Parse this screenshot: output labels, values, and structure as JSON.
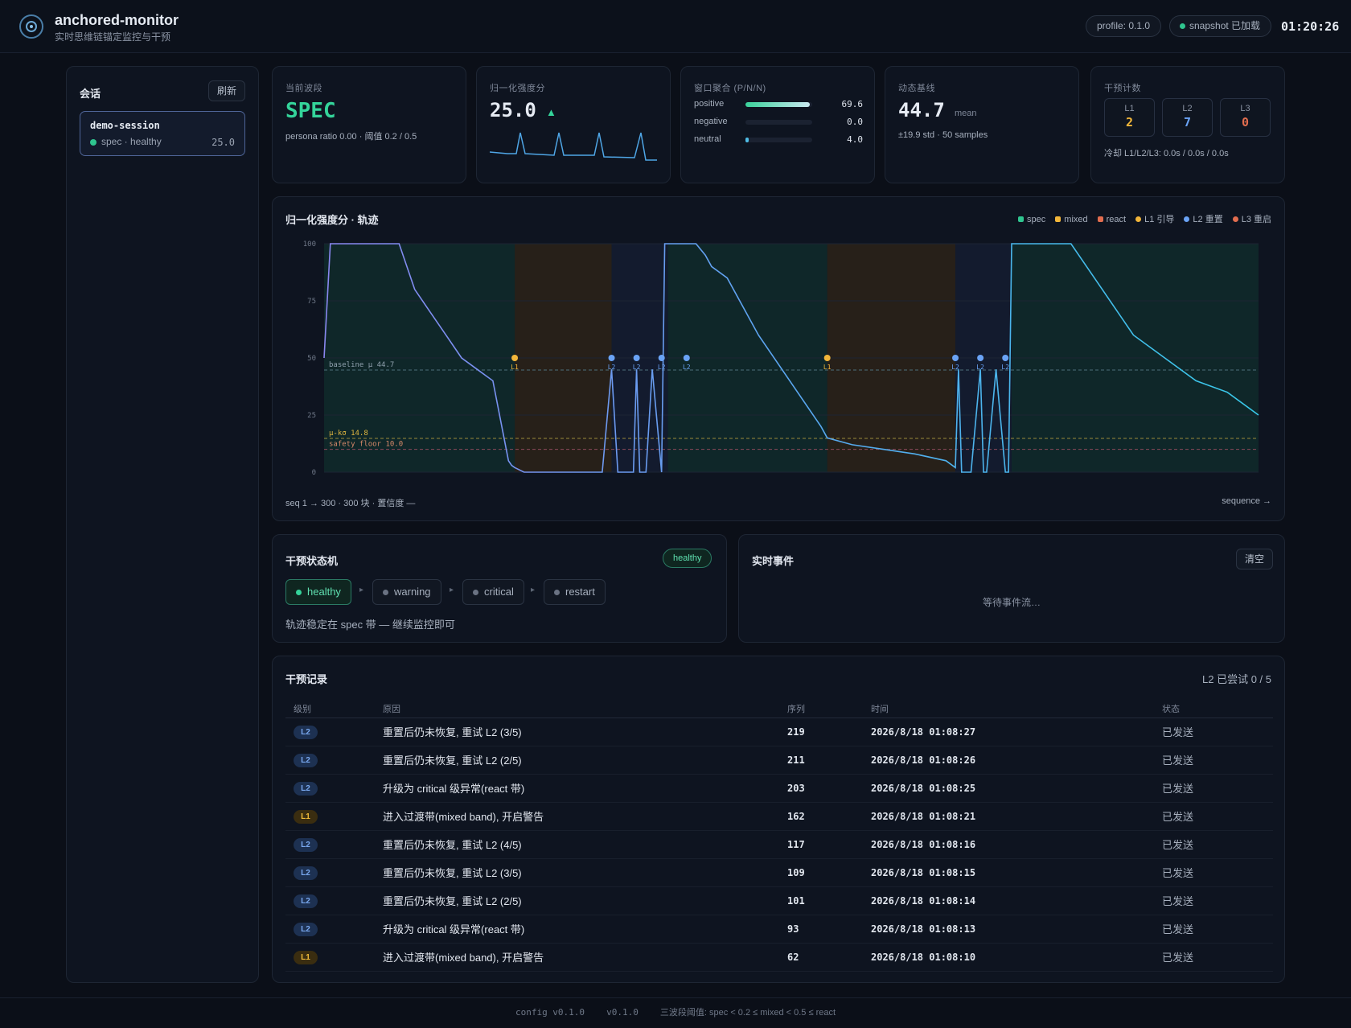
{
  "header": {
    "title": "anchored-monitor",
    "subtitle": "实时思维链锚定监控与干预",
    "profile": "profile: 0.1.0",
    "snapshot": "snapshot 已加载",
    "clock": "01:20:26"
  },
  "sidebar": {
    "title": "会话",
    "refresh": "刷新",
    "session": {
      "name": "demo-session",
      "status": "spec · healthy",
      "score": "25.0"
    }
  },
  "cards": {
    "phase": {
      "label": "当前波段",
      "value": "SPEC",
      "sub": "persona ratio 0.00 · 阈值 0.2 / 0.5"
    },
    "score": {
      "label": "归一化强度分",
      "value": "25.0",
      "trend": "▲"
    },
    "window": {
      "label": "窗口聚合 (P/N/N)",
      "rows": [
        {
          "name": "positive",
          "value": "69.6",
          "fraction": 0.96
        },
        {
          "name": "negative",
          "value": "0.0",
          "fraction": 0.0
        },
        {
          "name": "neutral",
          "value": "4.0",
          "fraction": 0.05
        }
      ]
    },
    "baseline": {
      "label": "动态基线",
      "value": "44.7",
      "unit": "mean",
      "sub": "±19.9 std · 50 samples"
    },
    "counts": {
      "label": "干预计数",
      "items": [
        {
          "k": "L1",
          "v": "2",
          "color": "#f2b63a"
        },
        {
          "k": "L2",
          "v": "7",
          "color": "#6aa3f5"
        },
        {
          "k": "L3",
          "v": "0",
          "color": "#e26d4f"
        }
      ],
      "cooldown": "冷却 L1/L2/L3: 0.0s / 0.0s / 0.0s"
    }
  },
  "trajectory": {
    "title": "归一化强度分 · 轨迹",
    "legend": [
      {
        "name": "spec",
        "color": "#2fc58f"
      },
      {
        "name": "mixed",
        "color": "#f2b63a"
      },
      {
        "name": "react",
        "color": "#e26d4f"
      },
      {
        "name": "L1 引导",
        "color": "#f2b63a",
        "round": true
      },
      {
        "name": "L2 重置",
        "color": "#6aa3f5",
        "round": true
      },
      {
        "name": "L3 重启",
        "color": "#e26d4f",
        "round": true
      }
    ],
    "footer_left": "seq 1 → 300 · 300 块 · 置信度 —",
    "footer_right": "sequence →",
    "baseline_label": "baseline μ 44.7",
    "kappa_label": "μ-kσ 14.8",
    "floor_label": "safety floor 10.0"
  },
  "chart_data": {
    "type": "line",
    "x": [
      1,
      3,
      5,
      10,
      15,
      20,
      25,
      30,
      35,
      40,
      45,
      50,
      55,
      60,
      61,
      62,
      65,
      70,
      75,
      80,
      83,
      85,
      90,
      93,
      95,
      100,
      101,
      102,
      104,
      106,
      109,
      110,
      111,
      113,
      115,
      117,
      118,
      120,
      123,
      125,
      130,
      140,
      150,
      160,
      162,
      170,
      180,
      190,
      200,
      203,
      204,
      205,
      208,
      211,
      212,
      213,
      216,
      219,
      220,
      221,
      225,
      230,
      240,
      250,
      260,
      270,
      280,
      290,
      300
    ],
    "y": [
      50,
      100,
      100,
      100,
      100,
      100,
      100,
      80,
      70,
      60,
      50,
      45,
      40,
      5,
      3,
      2,
      0,
      0,
      0,
      0,
      0,
      0,
      0,
      45,
      0,
      0,
      45,
      0,
      0,
      45,
      0,
      100,
      100,
      100,
      100,
      100,
      100,
      100,
      95,
      90,
      85,
      60,
      40,
      20,
      15,
      12,
      10,
      8,
      5,
      2,
      45,
      0,
      0,
      45,
      0,
      0,
      45,
      0,
      0,
      100,
      100,
      100,
      100,
      80,
      60,
      50,
      40,
      35,
      25
    ],
    "xlim": [
      1,
      300
    ],
    "ylim": [
      0,
      100
    ],
    "yticks": [
      0,
      25,
      50,
      75,
      100
    ],
    "baseline": 44.7,
    "mu_minus_k_sigma": 14.8,
    "safety_floor": 10.0,
    "bands": [
      {
        "from": 1,
        "to": 62,
        "band": "spec"
      },
      {
        "from": 62,
        "to": 93,
        "band": "mixed"
      },
      {
        "from": 93,
        "to": 111,
        "band": "react"
      },
      {
        "from": 111,
        "to": 162,
        "band": "spec"
      },
      {
        "from": 162,
        "to": 203,
        "band": "mixed"
      },
      {
        "from": 203,
        "to": 221,
        "band": "react"
      },
      {
        "from": 221,
        "to": 300,
        "band": "spec"
      }
    ],
    "markers": [
      {
        "seq": 62,
        "level": "L1"
      },
      {
        "seq": 93,
        "level": "L2"
      },
      {
        "seq": 101,
        "level": "L2"
      },
      {
        "seq": 109,
        "level": "L2"
      },
      {
        "seq": 117,
        "level": "L2"
      },
      {
        "seq": 162,
        "level": "L1"
      },
      {
        "seq": 203,
        "level": "L2"
      },
      {
        "seq": 211,
        "level": "L2"
      },
      {
        "seq": 219,
        "level": "L2"
      }
    ]
  },
  "statemachine": {
    "title": "干预状态机",
    "badge": "healthy",
    "states": [
      "healthy",
      "warning",
      "critical",
      "restart"
    ],
    "active": "healthy",
    "message": "轨迹稳定在 spec 带 — 继续监控即可"
  },
  "events": {
    "title": "实时事件",
    "clear": "清空",
    "empty": "等待事件流…"
  },
  "log": {
    "title": "干预记录",
    "summary": "L2 已尝试 0 / 5",
    "columns": [
      "级别",
      "原因",
      "序列",
      "时间",
      "状态"
    ],
    "rows": [
      {
        "level": "L2",
        "reason": "重置后仍未恢复, 重试 L2 (3/5)",
        "seq": "219",
        "time": "2026/8/18 01:08:27",
        "status": "已发送"
      },
      {
        "level": "L2",
        "reason": "重置后仍未恢复, 重试 L2 (2/5)",
        "seq": "211",
        "time": "2026/8/18 01:08:26",
        "status": "已发送"
      },
      {
        "level": "L2",
        "reason": "升级为 critical 级异常(react 带)",
        "seq": "203",
        "time": "2026/8/18 01:08:25",
        "status": "已发送"
      },
      {
        "level": "L1",
        "reason": "进入过渡带(mixed band), 开启警告",
        "seq": "162",
        "time": "2026/8/18 01:08:21",
        "status": "已发送"
      },
      {
        "level": "L2",
        "reason": "重置后仍未恢复, 重试 L2 (4/5)",
        "seq": "117",
        "time": "2026/8/18 01:08:16",
        "status": "已发送"
      },
      {
        "level": "L2",
        "reason": "重置后仍未恢复, 重试 L2 (3/5)",
        "seq": "109",
        "time": "2026/8/18 01:08:15",
        "status": "已发送"
      },
      {
        "level": "L2",
        "reason": "重置后仍未恢复, 重试 L2 (2/5)",
        "seq": "101",
        "time": "2026/8/18 01:08:14",
        "status": "已发送"
      },
      {
        "level": "L2",
        "reason": "升级为 critical 级异常(react 带)",
        "seq": "93",
        "time": "2026/8/18 01:08:13",
        "status": "已发送"
      },
      {
        "level": "L1",
        "reason": "进入过渡带(mixed band), 开启警告",
        "seq": "62",
        "time": "2026/8/18 01:08:10",
        "status": "已发送"
      }
    ]
  },
  "footer": {
    "config": "config v0.1.0",
    "version": "v0.1.0",
    "thresholds": "三波段阈值: spec < 0.2 ≤ mixed < 0.5 ≤ react"
  }
}
